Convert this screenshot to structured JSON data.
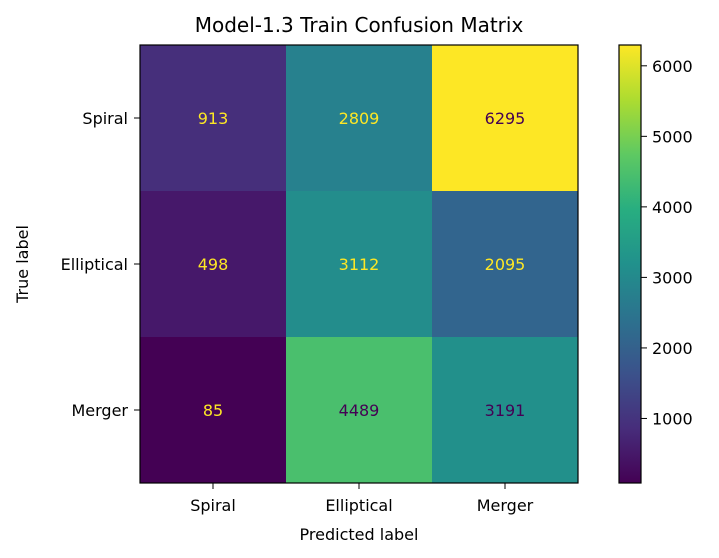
{
  "chart_data": {
    "type": "heatmap",
    "title": "Model-1.3 Train Confusion Matrix",
    "xlabel": "Predicted label",
    "ylabel": "True label",
    "x_categories": [
      "Spiral",
      "Elliptical",
      "Merger"
    ],
    "y_categories": [
      "Spiral",
      "Elliptical",
      "Merger"
    ],
    "values": [
      [
        913,
        2809,
        6295
      ],
      [
        498,
        3112,
        2095
      ],
      [
        85,
        4489,
        3191
      ]
    ],
    "colormap": "viridis",
    "colorbar": {
      "min": 85,
      "max": 6295,
      "ticks": [
        1000,
        2000,
        3000,
        4000,
        5000,
        6000
      ],
      "tick_labels": [
        "1000",
        "2000",
        "3000",
        "4000",
        "5000",
        "6000"
      ]
    },
    "text_colors": {
      "light": "#fde725",
      "dark": "#440154"
    },
    "grid": false
  }
}
